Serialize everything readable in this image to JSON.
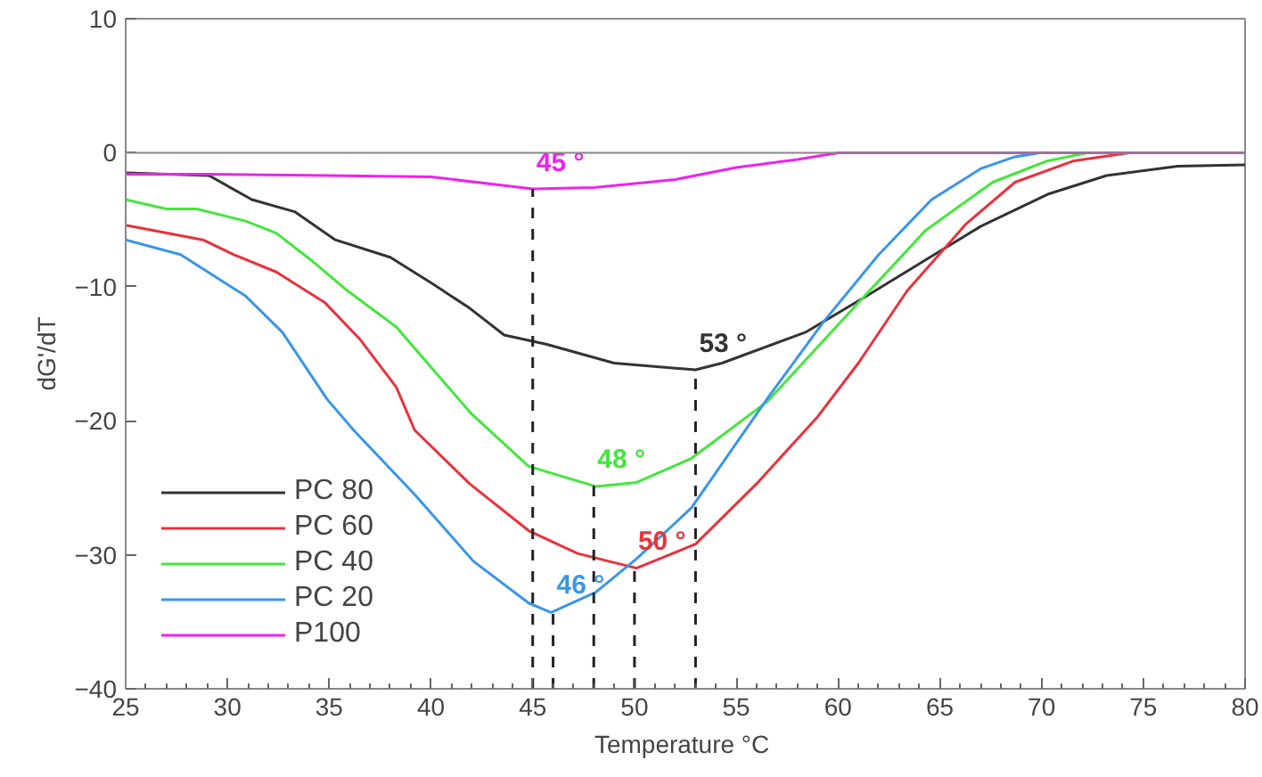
{
  "chart_data": {
    "type": "line",
    "xlabel": "Temperature  °C",
    "ylabel": "dG'/dT",
    "xlim": [
      25,
      80
    ],
    "ylim": [
      -40,
      10
    ],
    "xticks": [
      25,
      30,
      35,
      40,
      45,
      50,
      55,
      60,
      65,
      70,
      75,
      80
    ],
    "yticks": [
      -40,
      -30,
      -20,
      -10,
      0,
      10
    ],
    "grid": false,
    "legend": "bottom left",
    "line_style": "solid",
    "marker": "none",
    "series": [
      {
        "name": "PC 80",
        "color": "#333333",
        "x": [
          25,
          29.1,
          31.2,
          33.3,
          35.3,
          38,
          40.1,
          41.9,
          43.6,
          45.7,
          49,
          53,
          54.3,
          58.4,
          61.4,
          64.3,
          67,
          70.3,
          73.2,
          76.7,
          80
        ],
        "values": [
          -1.5,
          -1.7,
          -3.5,
          -4.4,
          -6.5,
          -7.8,
          -9.8,
          -11.6,
          -13.6,
          -14.3,
          -15.7,
          -16.2,
          -15.7,
          -13.4,
          -10.7,
          -8,
          -5.5,
          -3.1,
          -1.7,
          -1.0,
          -0.9
        ]
      },
      {
        "name": "PC 60",
        "color": "#e8323c",
        "x": [
          25,
          28.8,
          30.3,
          32.4,
          34.8,
          36.5,
          38.3,
          39.2,
          41.9,
          44.8,
          47.2,
          50.1,
          53,
          56,
          59,
          61,
          63.4,
          66.3,
          68.7,
          71.6,
          74.3,
          80
        ],
        "values": [
          -5.4,
          -6.5,
          -7.6,
          -8.9,
          -11.2,
          -13.9,
          -17.5,
          -20.7,
          -24.7,
          -28.2,
          -29.9,
          -31,
          -29.2,
          -24.7,
          -19.7,
          -15.7,
          -10.3,
          -5.3,
          -2.2,
          -0.6,
          0,
          0
        ]
      },
      {
        "name": "PC 40",
        "color": "#44e63c",
        "x": [
          25,
          27,
          28.5,
          30.9,
          32.4,
          34.1,
          35.9,
          38.3,
          40,
          42,
          44.8,
          48.1,
          50.1,
          52.8,
          56.5,
          61,
          64.3,
          67.6,
          70.3,
          72.3,
          80
        ],
        "values": [
          -3.5,
          -4.2,
          -4.2,
          -5.1,
          -6,
          -8,
          -10.3,
          -13,
          -16,
          -19.5,
          -23.4,
          -24.9,
          -24.6,
          -22.8,
          -18.6,
          -11.2,
          -5.8,
          -2.2,
          -0.6,
          0,
          0
        ]
      },
      {
        "name": "PC 20",
        "color": "#3a96e6",
        "x": [
          25,
          27.7,
          30.9,
          32.7,
          34.9,
          36.2,
          39.2,
          42.1,
          44.8,
          45.9,
          48.1,
          50.1,
          52.8,
          56.5,
          59.3,
          62,
          64.6,
          67,
          68.7,
          69.9,
          80
        ],
        "values": [
          -6.5,
          -7.6,
          -10.7,
          -13.4,
          -18.4,
          -20.7,
          -25.5,
          -30.5,
          -33.6,
          -34.3,
          -32.8,
          -30.3,
          -26.5,
          -18.4,
          -12.6,
          -7.6,
          -3.5,
          -1.2,
          -0.3,
          0,
          0
        ]
      },
      {
        "name": "P100",
        "color": "#ee22ee",
        "x": [
          25,
          29,
          35,
          40,
          45,
          48,
          50,
          52,
          55,
          58,
          60,
          80
        ],
        "values": [
          -1.6,
          -1.6,
          -1.7,
          -1.8,
          -2.7,
          -2.6,
          -2.3,
          -2.0,
          -1.1,
          -0.5,
          0,
          0
        ]
      }
    ],
    "ref_lines": [
      {
        "axis": "x",
        "value": 53,
        "label": "53 °",
        "color": "#222222",
        "line_style": "dashed"
      },
      {
        "axis": "x",
        "value": 50,
        "label": "50 °",
        "color": "#222222",
        "line_style": "dashed"
      },
      {
        "axis": "x",
        "value": 48,
        "label": "48 °",
        "color": "#222222",
        "line_style": "dashed"
      },
      {
        "axis": "x",
        "value": 46,
        "label": "46 °",
        "color": "#222222",
        "line_style": "dashed"
      },
      {
        "axis": "x",
        "value": 45,
        "label": "45 °",
        "color": "#222222",
        "line_style": "dashed"
      },
      {
        "axis": "y",
        "value": 0,
        "color": "#888888",
        "line_style": "solid"
      }
    ]
  }
}
